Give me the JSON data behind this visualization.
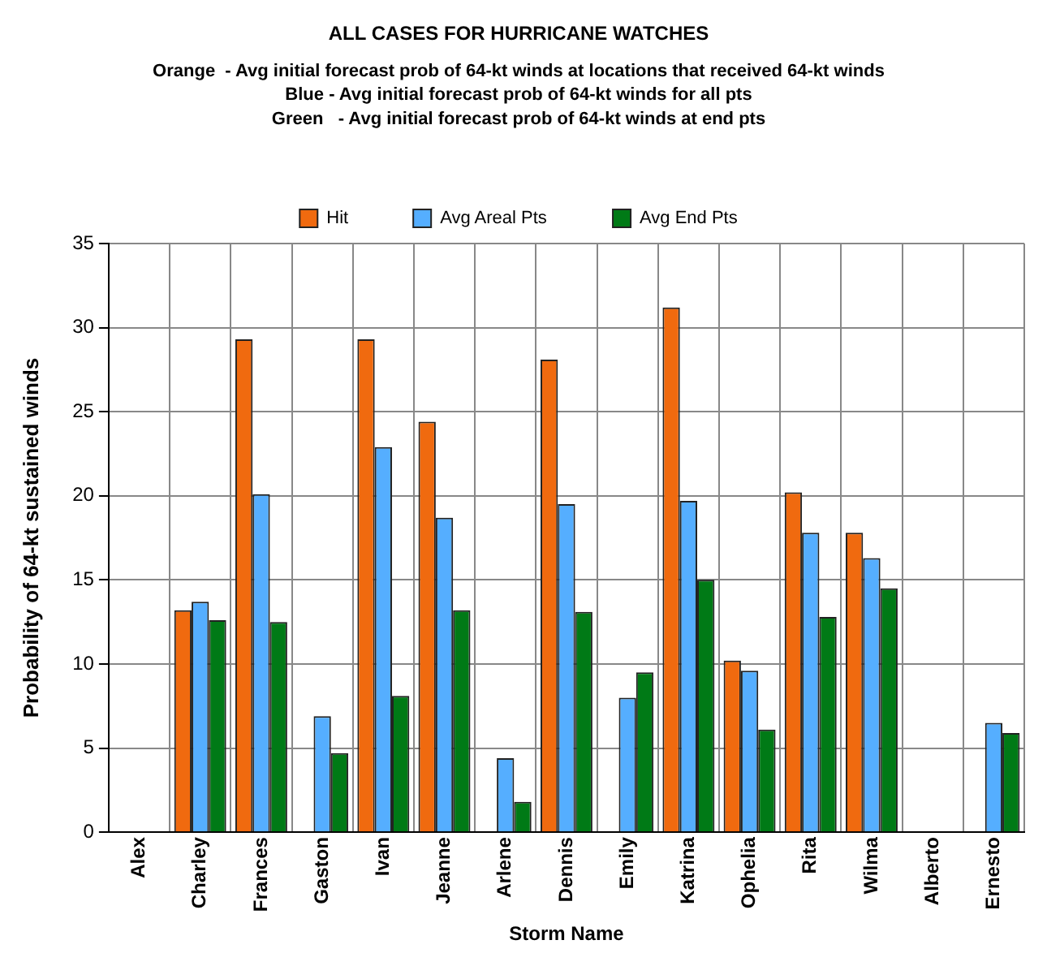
{
  "chart_data": {
    "type": "bar",
    "title": "ALL CASES FOR HURRICANE WATCHES",
    "subtitle": "Orange  - Avg initial forecast prob of 64-kt winds at locations that received 64-kt winds\nBlue - Avg initial forecast prob of 64-kt winds for all pts\nGreen   - Avg initial forecast prob of 64-kt winds at end pts",
    "xlabel": "Storm Name",
    "ylabel": "Probability of 64-kt sustained winds",
    "categories": [
      "Alex",
      "Charley",
      "Frances",
      "Gaston",
      "Ivan",
      "Jeanne",
      "Arlene",
      "Dennis",
      "Emily",
      "Katrina",
      "Ophelia",
      "Rita",
      "Wilma",
      "Alberto",
      "Ernesto"
    ],
    "series": [
      {
        "name": "Hit",
        "color": "#f06a0f",
        "values": [
          null,
          13.2,
          29.3,
          null,
          29.3,
          24.4,
          null,
          28.1,
          null,
          31.2,
          10.2,
          20.2,
          17.8,
          null,
          null
        ]
      },
      {
        "name": "Avg Areal Pts",
        "color": "#55aeff",
        "values": [
          null,
          13.7,
          20.1,
          6.9,
          22.9,
          18.7,
          4.4,
          19.5,
          8.0,
          19.7,
          9.6,
          17.8,
          16.3,
          null,
          6.5
        ]
      },
      {
        "name": "Avg End Pts",
        "color": "#007a16",
        "values": [
          null,
          12.6,
          12.5,
          4.7,
          8.1,
          13.2,
          1.8,
          13.1,
          9.5,
          15.0,
          6.1,
          12.8,
          14.5,
          null,
          5.9
        ]
      }
    ],
    "ylim": [
      0,
      35
    ],
    "yticks": [
      0,
      5,
      10,
      15,
      20,
      25,
      30,
      35
    ],
    "grid": true,
    "legend": "top"
  }
}
